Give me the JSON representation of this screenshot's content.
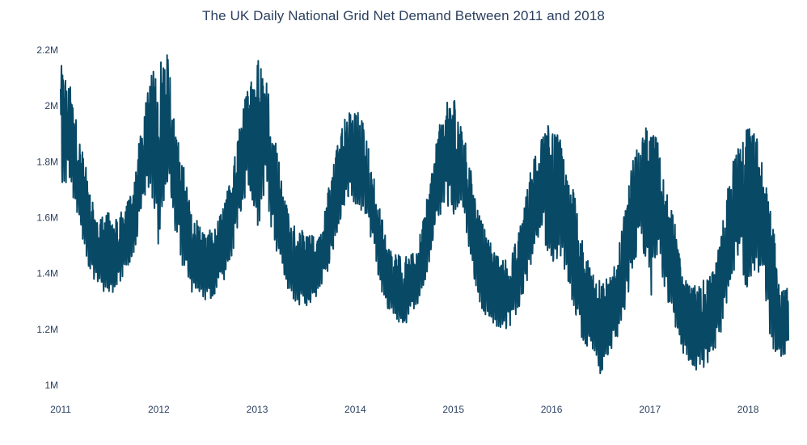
{
  "chart_data": {
    "type": "line",
    "title": "The UK Daily National Grid Net Demand Between 2011 and 2018",
    "xlabel": "",
    "ylabel": "",
    "x_range": [
      "2011-01-01",
      "2018-05-31"
    ],
    "ylim": [
      1000000,
      2200000
    ],
    "y_ticks": [
      1000000,
      1200000,
      1400000,
      1600000,
      1800000,
      2000000,
      2200000
    ],
    "y_tick_labels": [
      "1M",
      "1.2M",
      "1.4M",
      "1.6M",
      "1.8M",
      "2M",
      "2.2M"
    ],
    "x_ticks": [
      "2011-01-01",
      "2012-01-01",
      "2013-01-01",
      "2014-01-01",
      "2015-01-01",
      "2016-01-01",
      "2017-01-01",
      "2018-01-01"
    ],
    "x_tick_labels": [
      "2011",
      "2012",
      "2013",
      "2014",
      "2015",
      "2016",
      "2017",
      "2018"
    ],
    "grid": false,
    "line_color": "#084966",
    "series": [
      {
        "x": [
          "2011-01-01",
          "2011-02-01",
          "2011-03-01",
          "2011-04-01",
          "2011-05-01",
          "2011-06-01",
          "2011-07-01",
          "2011-08-01",
          "2011-09-01",
          "2011-10-01",
          "2011-11-01",
          "2011-12-01",
          "2012-01-01",
          "2012-02-01",
          "2012-03-01",
          "2012-04-01",
          "2012-05-01",
          "2012-06-01",
          "2012-07-01",
          "2012-08-01",
          "2012-09-01",
          "2012-10-01",
          "2012-11-01",
          "2012-12-01",
          "2013-01-01",
          "2013-02-01",
          "2013-03-01",
          "2013-04-01",
          "2013-05-01",
          "2013-06-01",
          "2013-07-01",
          "2013-08-01",
          "2013-09-01",
          "2013-10-01",
          "2013-11-01",
          "2013-12-01",
          "2014-01-01",
          "2014-02-01",
          "2014-03-01",
          "2014-04-01",
          "2014-05-01",
          "2014-06-01",
          "2014-07-01",
          "2014-08-01",
          "2014-09-01",
          "2014-10-01",
          "2014-11-01",
          "2014-12-01",
          "2015-01-01",
          "2015-02-01",
          "2015-03-01",
          "2015-04-01",
          "2015-05-01",
          "2015-06-01",
          "2015-07-01",
          "2015-08-01",
          "2015-09-01",
          "2015-10-01",
          "2015-11-01",
          "2015-12-01",
          "2016-01-01",
          "2016-02-01",
          "2016-03-01",
          "2016-04-01",
          "2016-05-01",
          "2016-06-01",
          "2016-07-01",
          "2016-08-01",
          "2016-09-01",
          "2016-10-01",
          "2016-11-01",
          "2016-12-01",
          "2017-01-01",
          "2017-02-01",
          "2017-03-01",
          "2017-04-01",
          "2017-05-01",
          "2017-06-01",
          "2017-07-01",
          "2017-08-01",
          "2017-09-01",
          "2017-10-01",
          "2017-11-01",
          "2017-12-01",
          "2018-01-01",
          "2018-02-01",
          "2018-03-01",
          "2018-04-01",
          "2018-05-01"
        ],
        "max": [
          2150000,
          2100000,
          1950000,
          1800000,
          1650000,
          1620000,
          1620000,
          1600000,
          1650000,
          1750000,
          1950000,
          2100000,
          2180000,
          2210000,
          1950000,
          1800000,
          1620000,
          1580000,
          1550000,
          1570000,
          1650000,
          1780000,
          1950000,
          2100000,
          2190000,
          2150000,
          1950000,
          1750000,
          1600000,
          1570000,
          1540000,
          1540000,
          1600000,
          1750000,
          1900000,
          1980000,
          2000000,
          1950000,
          1800000,
          1650000,
          1500000,
          1480000,
          1460000,
          1470000,
          1550000,
          1700000,
          1900000,
          2000000,
          2060000,
          1950000,
          1800000,
          1650000,
          1550000,
          1480000,
          1450000,
          1460000,
          1550000,
          1700000,
          1850000,
          1900000,
          1980000,
          1900000,
          1800000,
          1650000,
          1480000,
          1420000,
          1390000,
          1380000,
          1450000,
          1650000,
          1820000,
          1900000,
          1940000,
          1880000,
          1700000,
          1600000,
          1400000,
          1350000,
          1370000,
          1380000,
          1420000,
          1600000,
          1800000,
          1880000,
          1930000,
          1900000,
          1800000,
          1600000,
          1350000
        ],
        "min": [
          1680000,
          1700000,
          1600000,
          1450000,
          1350000,
          1320000,
          1300000,
          1320000,
          1380000,
          1450000,
          1600000,
          1700000,
          1440000,
          1700000,
          1500000,
          1400000,
          1320000,
          1300000,
          1280000,
          1300000,
          1350000,
          1450000,
          1600000,
          1700000,
          1500000,
          1680000,
          1500000,
          1400000,
          1300000,
          1270000,
          1260000,
          1280000,
          1330000,
          1420000,
          1550000,
          1650000,
          1580000,
          1600000,
          1500000,
          1350000,
          1250000,
          1230000,
          1180000,
          1230000,
          1300000,
          1400000,
          1550000,
          1650000,
          1550000,
          1620000,
          1450000,
          1300000,
          1220000,
          1200000,
          1180000,
          1200000,
          1250000,
          1350000,
          1480000,
          1550000,
          1300000,
          1450000,
          1350000,
          1200000,
          1120000,
          1100000,
          1010000,
          1100000,
          1150000,
          1250000,
          1400000,
          1500000,
          1250000,
          1450000,
          1300000,
          1200000,
          1100000,
          1060000,
          1020000,
          1050000,
          1100000,
          1200000,
          1350000,
          1450000,
          1250000,
          1400000,
          1300000,
          1100000,
          1090000
        ]
      }
    ]
  }
}
